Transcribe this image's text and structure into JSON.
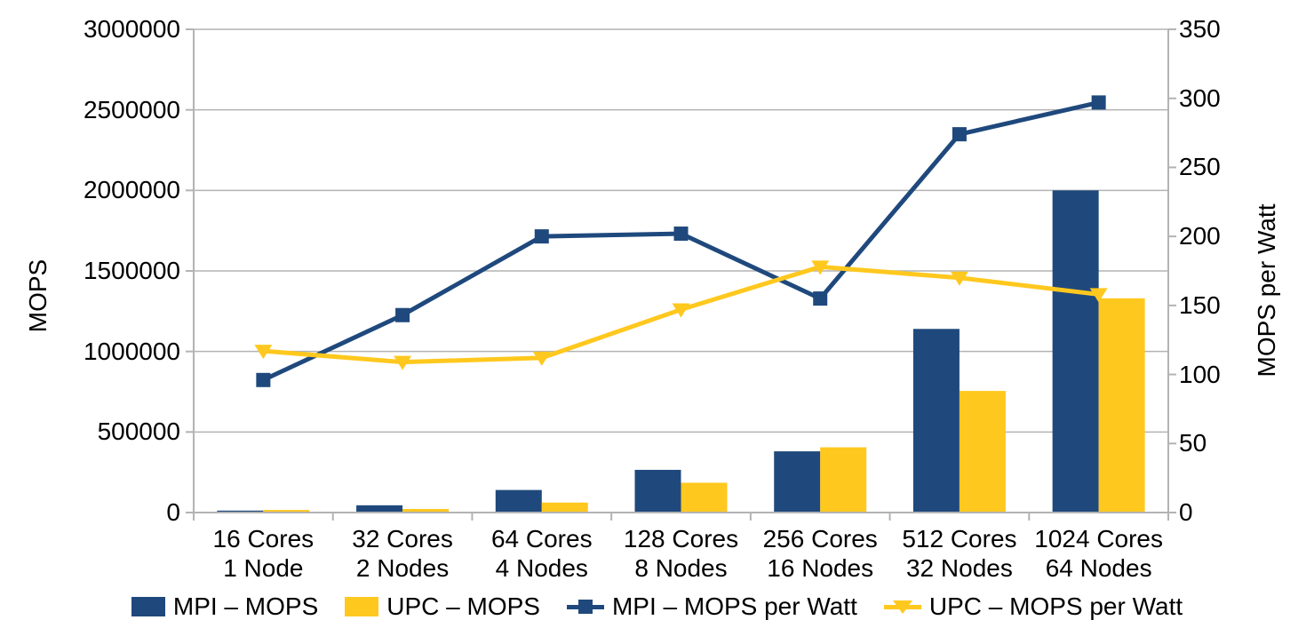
{
  "chart_data": {
    "type": "combo-bar-line",
    "title": "",
    "categories": [
      [
        "16 Cores",
        "1 Node"
      ],
      [
        "32 Cores",
        "2 Nodes"
      ],
      [
        "64 Cores",
        "4 Nodes"
      ],
      [
        "128 Cores",
        "8 Nodes"
      ],
      [
        "256 Cores",
        "16 Nodes"
      ],
      [
        "512 Cores",
        "32 Nodes"
      ],
      [
        "1024 Cores",
        "64 Nodes"
      ]
    ],
    "series": [
      {
        "name": "MPI – MOPS",
        "type": "bar",
        "axis": "left",
        "color": "#1F497D",
        "values": [
          12000,
          45000,
          140000,
          265000,
          380000,
          1140000,
          2000000
        ]
      },
      {
        "name": "UPC – MOPS",
        "type": "bar",
        "axis": "left",
        "color": "#FFC81E",
        "values": [
          16000,
          22000,
          62000,
          185000,
          405000,
          755000,
          1330000
        ]
      },
      {
        "name": "MPI – MOPS per Watt",
        "type": "line",
        "axis": "right",
        "color": "#1F497D",
        "marker": "square",
        "values": [
          96,
          143,
          200,
          202,
          155,
          274,
          297
        ]
      },
      {
        "name": "UPC – MOPS per Watt",
        "type": "line",
        "axis": "right",
        "color": "#FFC81E",
        "marker": "triangle-down",
        "values": [
          117,
          109,
          112,
          147,
          178,
          170,
          158
        ]
      }
    ],
    "left_axis": {
      "title": "MOPS",
      "min": 0,
      "max": 3000000,
      "step": 500000,
      "tick_labels": [
        "0",
        "500000",
        "1000000",
        "1500000",
        "2000000",
        "2500000",
        "3000000"
      ]
    },
    "right_axis": {
      "title": "MOPS per Watt",
      "min": 0,
      "max": 350,
      "step": 50,
      "tick_labels": [
        "0",
        "50",
        "100",
        "150",
        "200",
        "250",
        "300",
        "350"
      ]
    },
    "grid": true,
    "legend_position": "bottom",
    "colors": {
      "background": "#FFFFFF",
      "grid": "#B3B3B3",
      "axis": "#B3B3B3",
      "text": "#000000"
    }
  }
}
